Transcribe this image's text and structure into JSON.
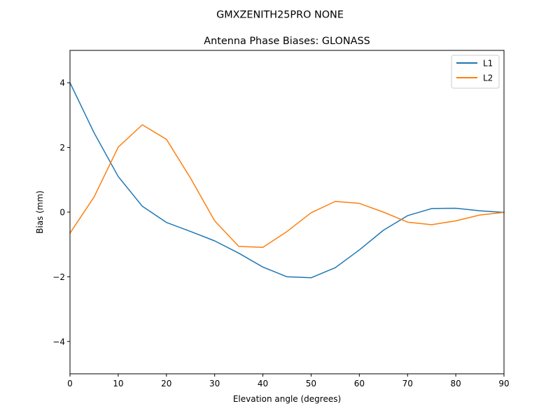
{
  "figure": {
    "suptitle": "GMXZENITH25PRO  NONE"
  },
  "chart_data": {
    "type": "line",
    "title": "Antenna Phase Biases: GLONASS",
    "xlabel": "Elevation angle (degrees)",
    "ylabel": "Bias (mm)",
    "xlim": [
      0,
      90
    ],
    "ylim": [
      -5,
      5
    ],
    "x_ticks": [
      0,
      10,
      20,
      30,
      40,
      50,
      60,
      70,
      80,
      90
    ],
    "x_tick_labels": [
      "0",
      "10",
      "20",
      "30",
      "40",
      "50",
      "60",
      "70",
      "80",
      "90"
    ],
    "y_ticks": [
      -4,
      -2,
      0,
      2,
      4
    ],
    "y_tick_labels": [
      "−4",
      "−2",
      "0",
      "2",
      "4"
    ],
    "grid": false,
    "legend_position": "upper-right",
    "x": [
      0,
      5,
      10,
      15,
      20,
      25,
      30,
      35,
      40,
      45,
      50,
      55,
      60,
      65,
      70,
      75,
      80,
      85,
      90
    ],
    "series": [
      {
        "name": "L1",
        "color": "#1f77b4",
        "values": [
          4.0,
          2.45,
          1.1,
          0.18,
          -0.32,
          -0.6,
          -0.89,
          -1.27,
          -1.7,
          -2.0,
          -2.03,
          -1.72,
          -1.17,
          -0.56,
          -0.11,
          0.11,
          0.12,
          0.04,
          -0.01
        ]
      },
      {
        "name": "L2",
        "color": "#ff7f0e",
        "values": [
          -0.65,
          0.47,
          2.01,
          2.7,
          2.25,
          1.05,
          -0.27,
          -1.06,
          -1.09,
          -0.6,
          -0.02,
          0.33,
          0.27,
          0.0,
          -0.31,
          -0.39,
          -0.27,
          -0.09,
          -0.01
        ]
      }
    ]
  }
}
